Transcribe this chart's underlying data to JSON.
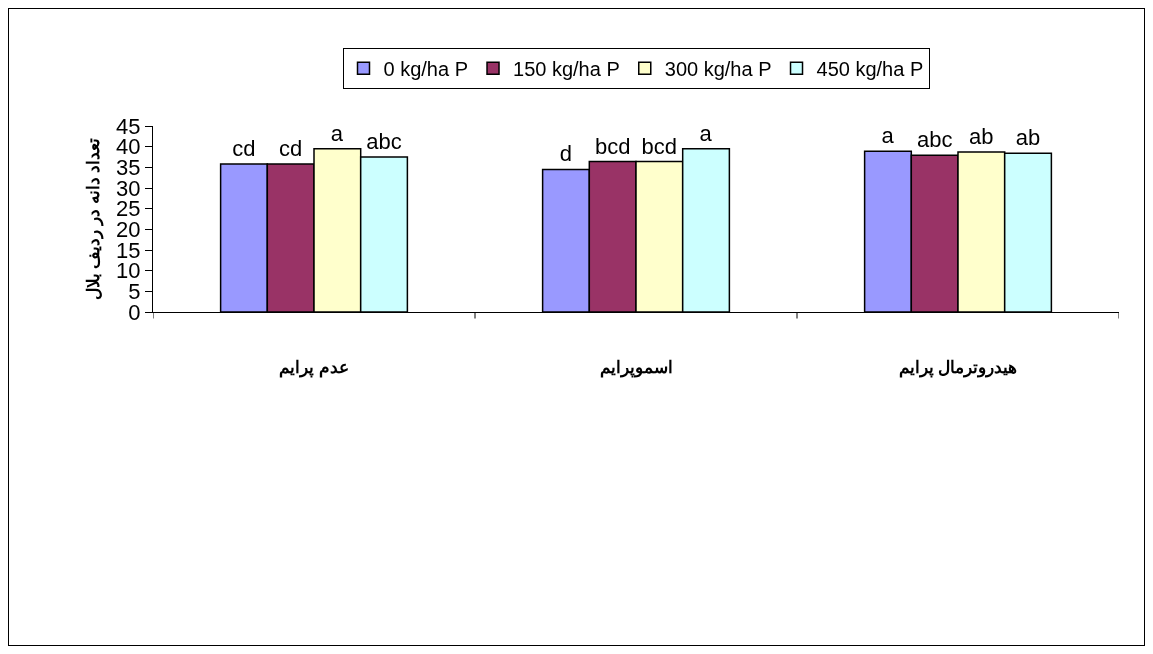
{
  "chart_data": {
    "type": "bar",
    "ylabel": "تعداد دانه در ردیف بلال",
    "categories": [
      "عدم پرایم",
      "اسموپرایم",
      "هیدروترمال پرایم"
    ],
    "series": [
      {
        "name": "0 kg/ha P",
        "color": "#9999ff",
        "values": [
          35.8,
          34.5,
          38.9
        ],
        "value_labels": [
          "cd",
          "d",
          "a"
        ]
      },
      {
        "name": "150 kg/ha P",
        "color": "#993366",
        "values": [
          35.8,
          36.4,
          37.9
        ],
        "value_labels": [
          "cd",
          "bcd",
          "abc"
        ]
      },
      {
        "name": "300 kg/ha P",
        "color": "#ffffcc",
        "values": [
          39.5,
          36.4,
          38.7
        ],
        "value_labels": [
          "a",
          "bcd",
          "ab"
        ]
      },
      {
        "name": "450 kg/ha P",
        "color": "#ccffff",
        "values": [
          37.5,
          39.5,
          38.4
        ],
        "value_labels": [
          "abc",
          "a",
          "ab"
        ]
      }
    ],
    "ylim": [
      0,
      45
    ],
    "yticks": [
      0,
      5,
      10,
      15,
      20,
      25,
      30,
      35,
      40,
      45
    ],
    "grid": false,
    "legend": "top"
  }
}
